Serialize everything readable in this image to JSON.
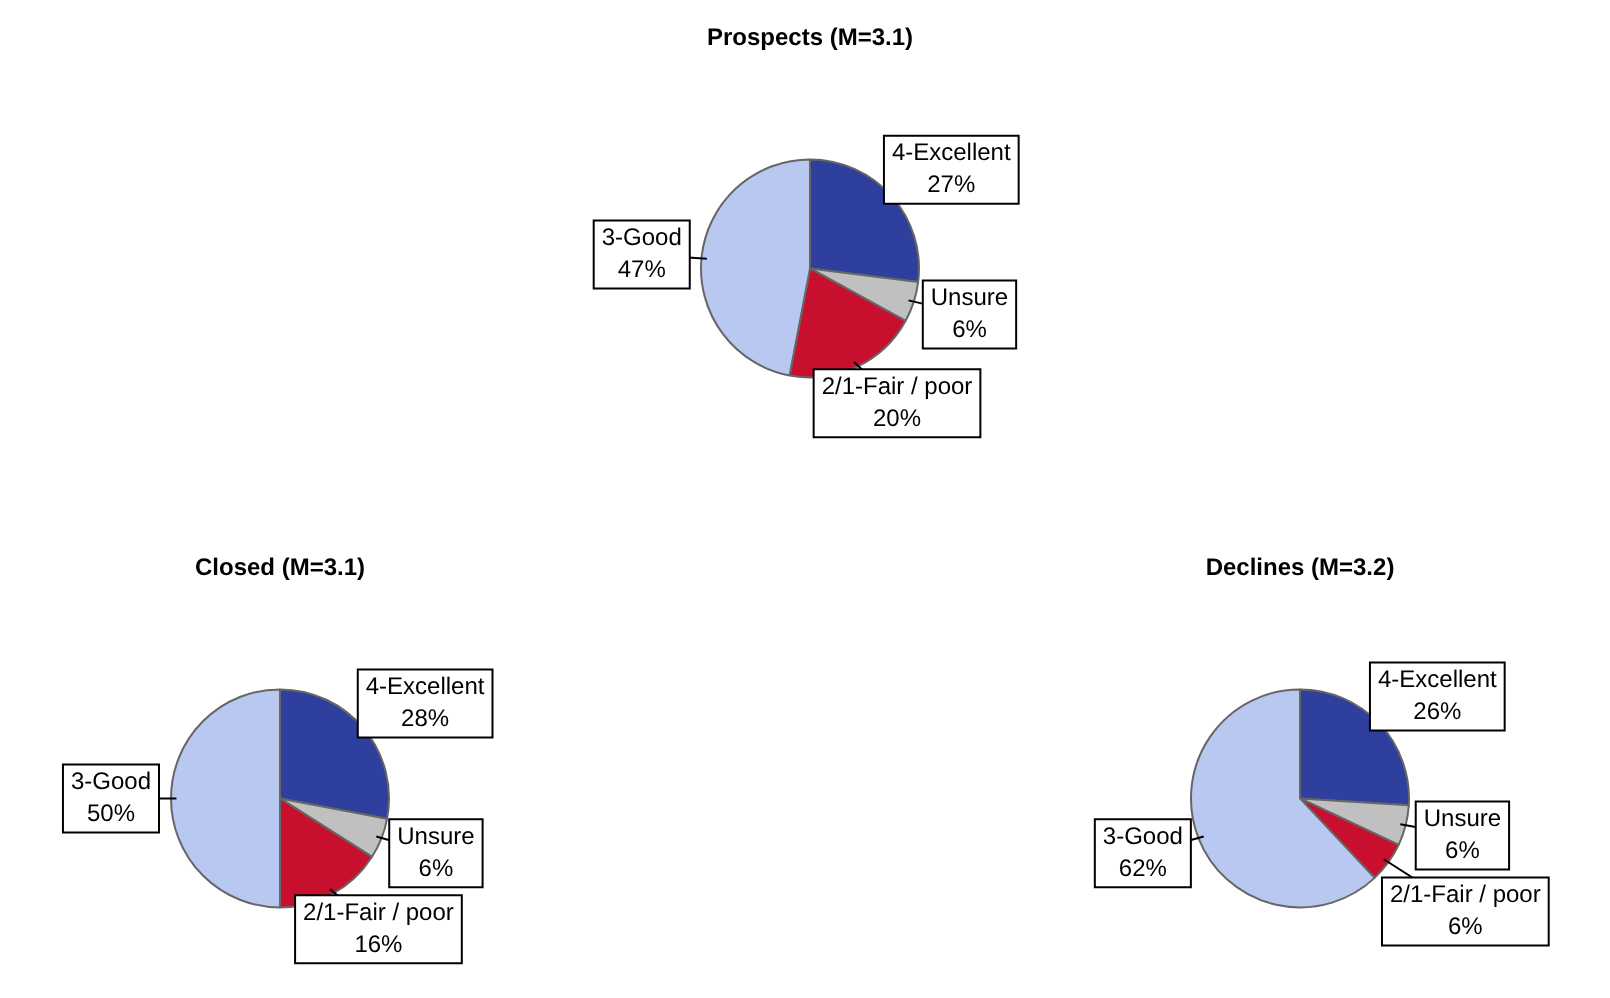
{
  "chart_data": [
    {
      "type": "pie",
      "title": "Prospects (M=3.1)",
      "categories": [
        "4-Excellent",
        "Unsure",
        "2/1-Fair / poor",
        "3-Good"
      ],
      "values": [
        27,
        6,
        20,
        47
      ],
      "value_labels": [
        "27%",
        "6%",
        "20%",
        "47%"
      ],
      "colors": [
        "#2e3f9e",
        "#c0c0c0",
        "#c8102e",
        "#b8c8f0"
      ],
      "legend": false
    },
    {
      "type": "pie",
      "title": "Closed (M=3.1)",
      "categories": [
        "4-Excellent",
        "Unsure",
        "2/1-Fair / poor",
        "3-Good"
      ],
      "values": [
        28,
        6,
        16,
        50
      ],
      "value_labels": [
        "28%",
        "6%",
        "16%",
        "50%"
      ],
      "colors": [
        "#2e3f9e",
        "#c0c0c0",
        "#c8102e",
        "#b8c8f0"
      ],
      "legend": false
    },
    {
      "type": "pie",
      "title": "Declines (M=3.2)",
      "categories": [
        "4-Excellent",
        "Unsure",
        "2/1-Fair / poor",
        "3-Good"
      ],
      "values": [
        26,
        6,
        6,
        62
      ],
      "value_labels": [
        "26%",
        "6%",
        "6%",
        "62%"
      ],
      "colors": [
        "#2e3f9e",
        "#c0c0c0",
        "#c8102e",
        "#b8c8f0"
      ],
      "legend": false
    }
  ]
}
